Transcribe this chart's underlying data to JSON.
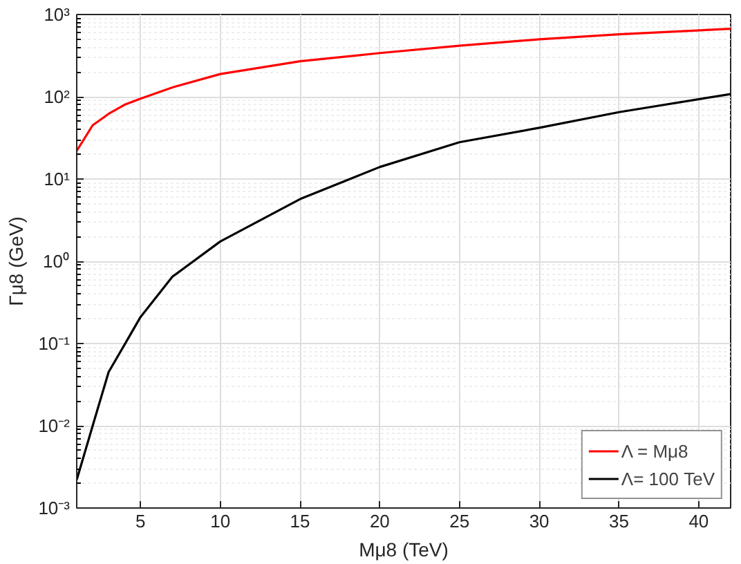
{
  "chart_data": {
    "type": "line",
    "xlabel": "Mμ8 (TeV)",
    "ylabel": "Γμ8 (GeV)",
    "x": [
      1,
      2,
      3,
      4,
      5,
      7,
      10,
      15,
      20,
      25,
      30,
      35,
      42
    ],
    "series": [
      {
        "name": "Λ = Mμ8",
        "color": "#ff0000",
        "values": [
          22,
          45,
          62,
          80,
          95,
          130,
          189,
          270,
          340,
          417,
          500,
          575,
          670
        ]
      },
      {
        "name": "Λ= 100 TeV",
        "color": "#000000",
        "values": [
          0.0022,
          0.01,
          0.045,
          0.097,
          0.21,
          0.65,
          1.74,
          5.7,
          14,
          28,
          42,
          65,
          108
        ]
      }
    ],
    "log": "y",
    "xlim": [
      1,
      42
    ],
    "ylim": [
      0.001,
      1000
    ],
    "xticks": [
      5,
      10,
      15,
      20,
      25,
      30,
      35,
      40
    ],
    "yticks": [
      {
        "value": 0.001,
        "label": "10⁻³"
      },
      {
        "value": 0.01,
        "label": "10⁻²"
      },
      {
        "value": 0.1,
        "label": "10⁻¹"
      },
      {
        "value": 1,
        "label": "10⁰"
      },
      {
        "value": 10,
        "label": "10¹"
      },
      {
        "value": 100,
        "label": "10²"
      },
      {
        "value": 1000,
        "label": "10³"
      }
    ],
    "grid": true,
    "legend": "bottom right",
    "line_style": "solid"
  }
}
